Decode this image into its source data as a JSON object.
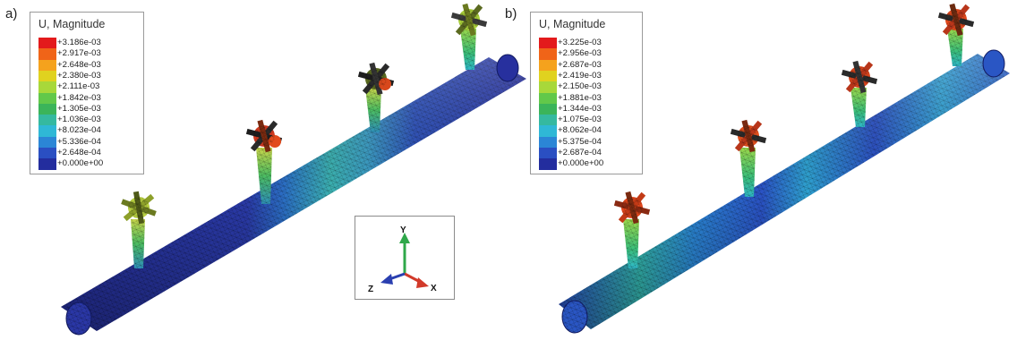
{
  "panels": [
    {
      "label": "a)",
      "legend_title": "U, Magnitude",
      "ticks": [
        "+3.186e-03",
        "+2.917e-03",
        "+2.648e-03",
        "+2.380e-03",
        "+2.111e-03",
        "+1.842e-03",
        "+1.305e-03",
        "+1.036e-03",
        "+8.023e-04",
        "+5.336e-04",
        "+2.648e-04",
        "+0.000e+00"
      ]
    },
    {
      "label": "b)",
      "legend_title": "U, Magnitude",
      "ticks": [
        "+3.225e-03",
        "+2.956e-03",
        "+2.687e-03",
        "+2.419e-03",
        "+2.150e-03",
        "+1.881e-03",
        "+1.344e-03",
        "+1.075e-03",
        "+8.062e-04",
        "+5.375e-04",
        "+2.687e-04",
        "+0.000e+00"
      ]
    }
  ],
  "colorbar": [
    "#e31a1c",
    "#f06418",
    "#f5a21d",
    "#e0d21f",
    "#a8d83a",
    "#62c84a",
    "#3bb45a",
    "#35b9a0",
    "#2fb8d6",
    "#2b86d6",
    "#2a4fc2",
    "#232d9e"
  ],
  "triad": {
    "y": "Y",
    "x": "X",
    "z": "Z",
    "y_color": "#2fa84a",
    "x_color": "#d23a2a",
    "z_color": "#2a3fb0"
  }
}
